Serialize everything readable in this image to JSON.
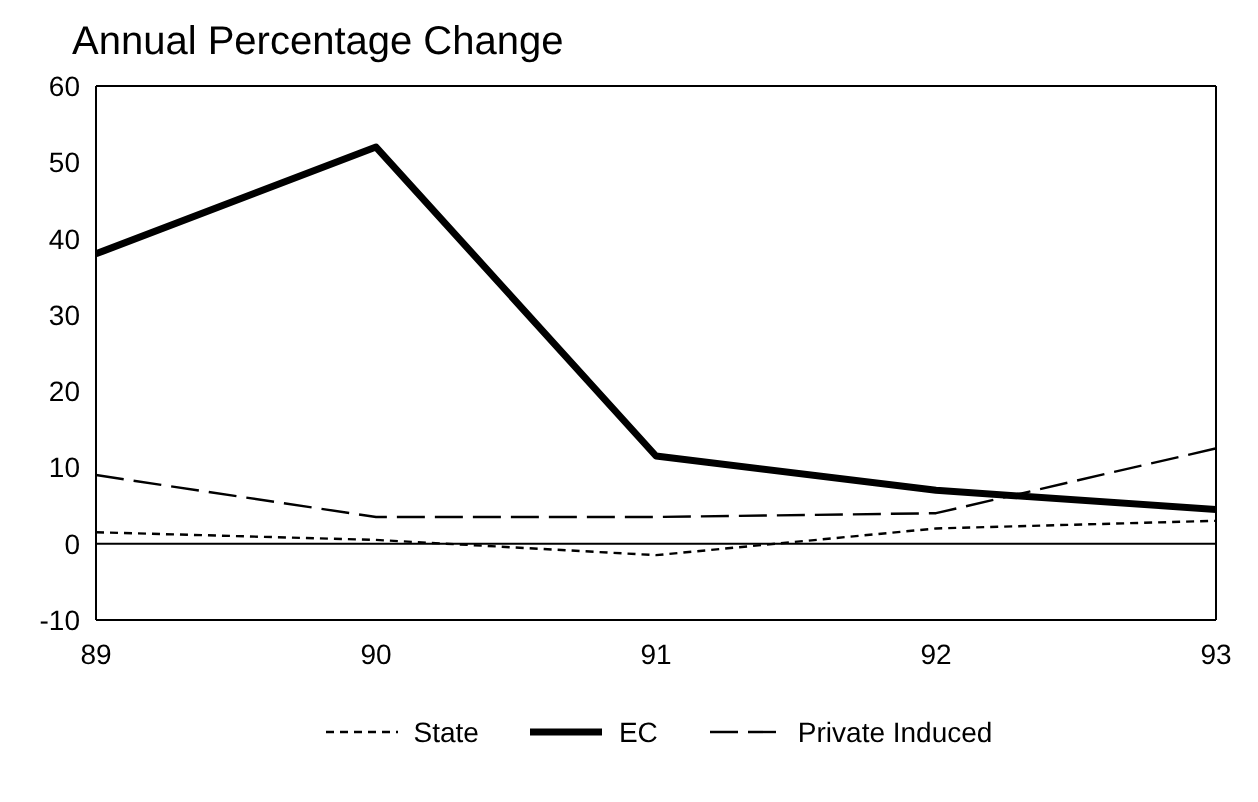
{
  "chart_data": {
    "type": "line",
    "title": "Annual Percentage Change",
    "x": [
      89,
      90,
      91,
      92,
      93
    ],
    "xlim": [
      89,
      93
    ],
    "xticks": [
      89,
      90,
      91,
      92,
      93
    ],
    "ylim": [
      -10,
      60
    ],
    "yticks": [
      -10,
      0,
      10,
      20,
      30,
      40,
      50,
      60
    ],
    "series": [
      {
        "name": "State",
        "color": "#000000",
        "line_style": "dotted",
        "values": [
          1.5,
          0.5,
          -1.5,
          2,
          3
        ]
      },
      {
        "name": "EC",
        "color": "#000000",
        "line_style": "solid",
        "values": [
          38,
          52,
          11.5,
          7,
          4.5
        ]
      },
      {
        "name": "Private Induced",
        "color": "#000000",
        "line_style": "dashed",
        "values": [
          9,
          3.5,
          3.5,
          4,
          12.5
        ]
      }
    ],
    "ref_lines": [
      {
        "axis": "y",
        "value": 0,
        "label": null,
        "color": "#000000",
        "line_style": "solid"
      }
    ],
    "grid": false,
    "legend": "bottom",
    "marker": "none"
  }
}
